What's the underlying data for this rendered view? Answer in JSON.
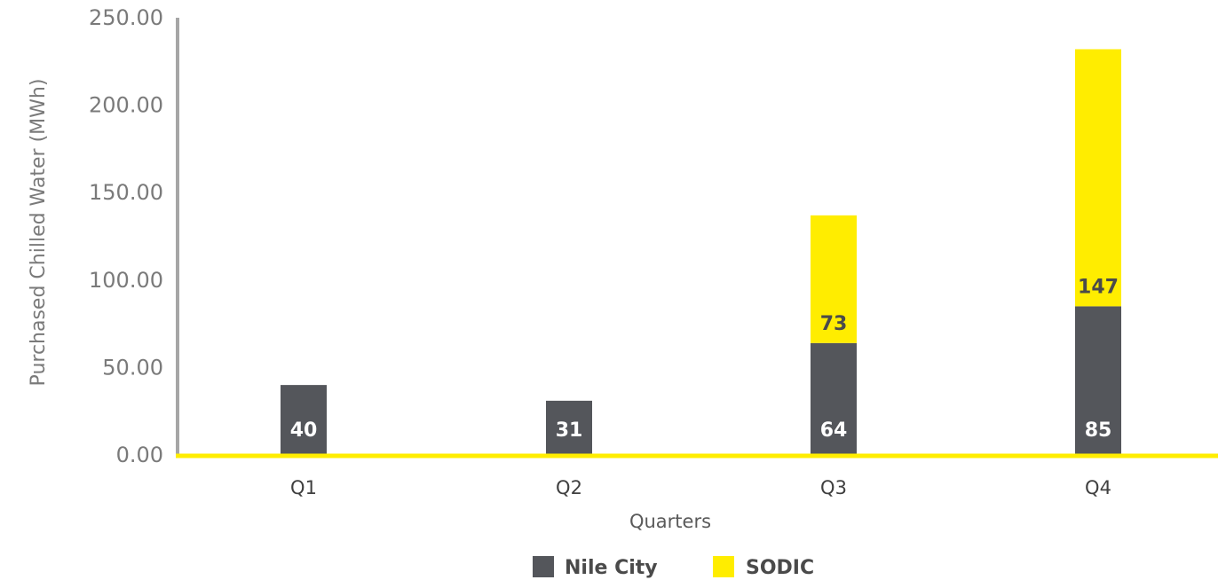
{
  "chart_data": {
    "type": "bar",
    "stacked": true,
    "categories": [
      "Q1",
      "Q2",
      "Q3",
      "Q4"
    ],
    "series": [
      {
        "name": "Nile City",
        "values": [
          40,
          31,
          64,
          85
        ],
        "color": "#54565b",
        "label_color": "#ffffff"
      },
      {
        "name": "SODIC",
        "values": [
          0,
          0,
          73,
          147
        ],
        "color": "#ffed00",
        "label_color": "#4a4a4a"
      }
    ],
    "xlabel": "Quarters",
    "ylabel": "Purchased Chilled Water (MWh)",
    "ylim": [
      0,
      250
    ],
    "yticks": [
      "0.00",
      "50.00",
      "100.00",
      "150.00",
      "200.00",
      "250.00"
    ],
    "ytick_values": [
      0,
      50,
      100,
      150,
      200,
      250
    ],
    "legend_position": "bottom",
    "grid": false,
    "axis_colors": {
      "y_axis": "#a6a6a6",
      "x_axis": "#ffed00"
    }
  }
}
